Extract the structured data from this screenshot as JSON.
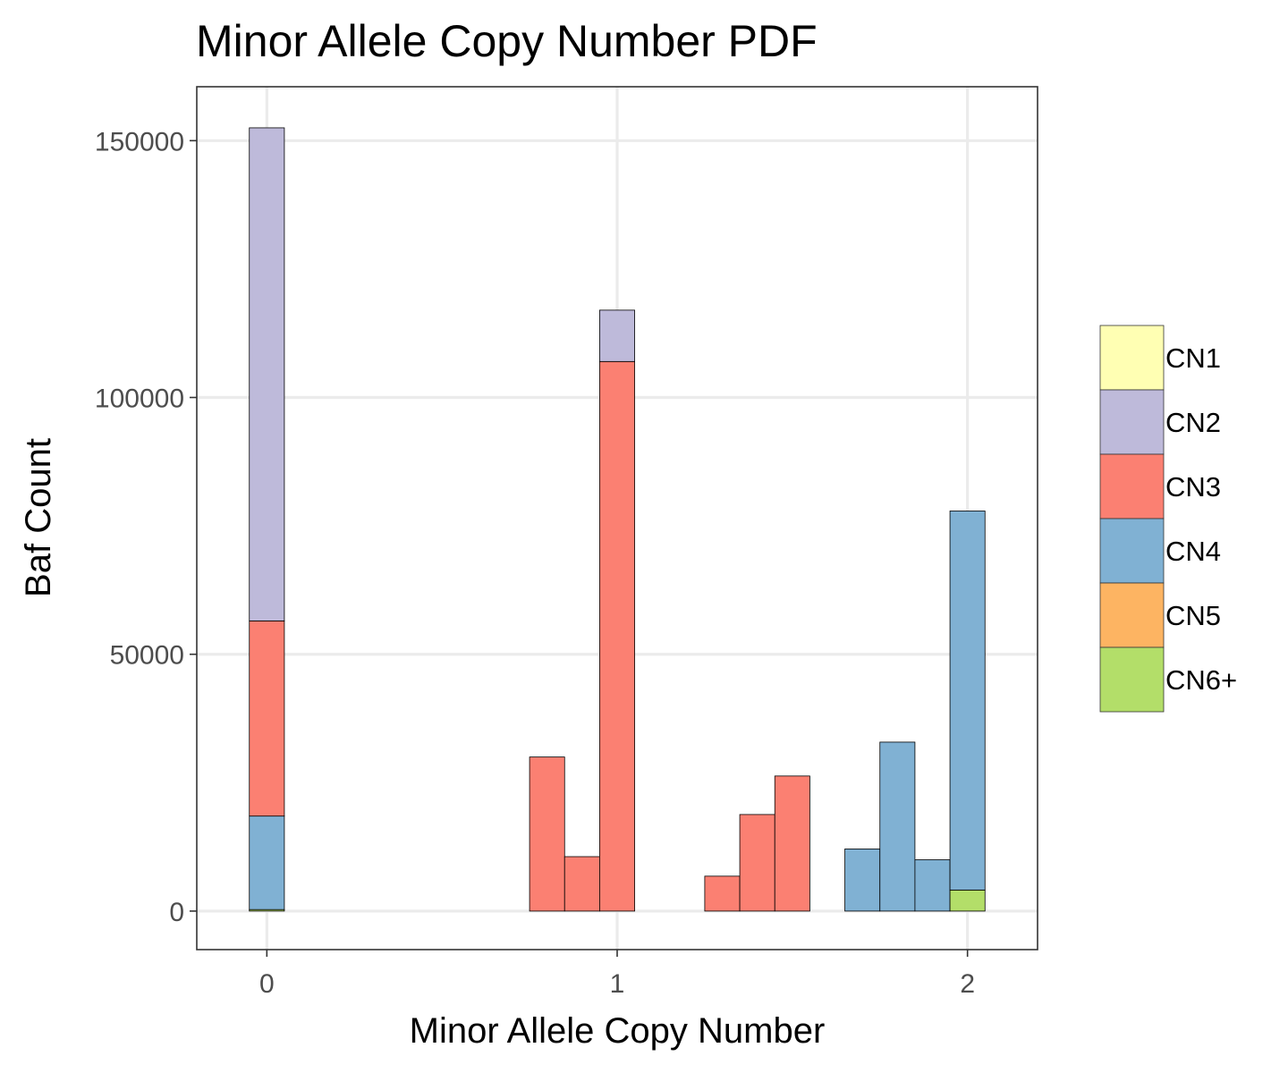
{
  "chart_data": {
    "type": "bar",
    "stacked": true,
    "title": "Minor Allele Copy Number PDF",
    "xlabel": "Minor Allele Copy Number",
    "ylabel": "Baf Count",
    "xlim": [
      -0.2,
      2.2
    ],
    "ylim": [
      -7500,
      160500
    ],
    "x_ticks": [
      0,
      1,
      2
    ],
    "x_tick_labels": [
      "0",
      "1",
      "2"
    ],
    "y_ticks": [
      0,
      50000,
      100000,
      150000
    ],
    "y_tick_labels": [
      "0",
      "50000",
      "100000",
      "150000"
    ],
    "grid": true,
    "legend_position": "right",
    "bin_width": 0.1,
    "x": [
      0,
      0.1,
      0.2,
      0.3,
      0.4,
      0.5,
      0.6,
      0.7,
      0.8,
      0.9,
      1.0,
      1.1,
      1.2,
      1.3,
      1.4,
      1.5,
      1.6,
      1.7,
      1.8,
      1.9,
      2.0
    ],
    "series": [
      {
        "name": "CN1",
        "color": "#FFFFB3",
        "values": [
          0,
          0,
          0,
          0,
          0,
          0,
          0,
          0,
          0,
          0,
          0,
          0,
          0,
          0,
          0,
          0,
          0,
          0,
          0,
          0,
          0
        ]
      },
      {
        "name": "CN2",
        "color": "#BEBADA",
        "values": [
          96000,
          0,
          0,
          0,
          0,
          0,
          0,
          0,
          0,
          0,
          10000,
          0,
          0,
          0,
          0,
          0,
          0,
          0,
          0,
          0,
          0
        ]
      },
      {
        "name": "CN3",
        "color": "#FB8072",
        "values": [
          38000,
          0,
          0,
          0,
          0,
          0,
          0,
          0,
          30000,
          10600,
          107000,
          0,
          0,
          6800,
          18800,
          26300,
          0,
          0,
          0,
          0,
          0
        ]
      },
      {
        "name": "CN4",
        "color": "#80B1D3",
        "values": [
          18200,
          0,
          0,
          0,
          0,
          0,
          0,
          0,
          0,
          0,
          0,
          0,
          0,
          0,
          0,
          0,
          0,
          12100,
          32900,
          10000,
          73800
        ]
      },
      {
        "name": "CN5",
        "color": "#FDB462",
        "values": [
          0,
          0,
          0,
          0,
          0,
          0,
          0,
          0,
          0,
          0,
          0,
          0,
          0,
          0,
          0,
          0,
          0,
          0,
          0,
          0,
          0
        ]
      },
      {
        "name": "CN6+",
        "color": "#B3DE69",
        "values": [
          300,
          0,
          0,
          0,
          0,
          0,
          0,
          0,
          0,
          0,
          0,
          0,
          0,
          0,
          0,
          0,
          0,
          0,
          0,
          0,
          4100
        ]
      }
    ]
  }
}
